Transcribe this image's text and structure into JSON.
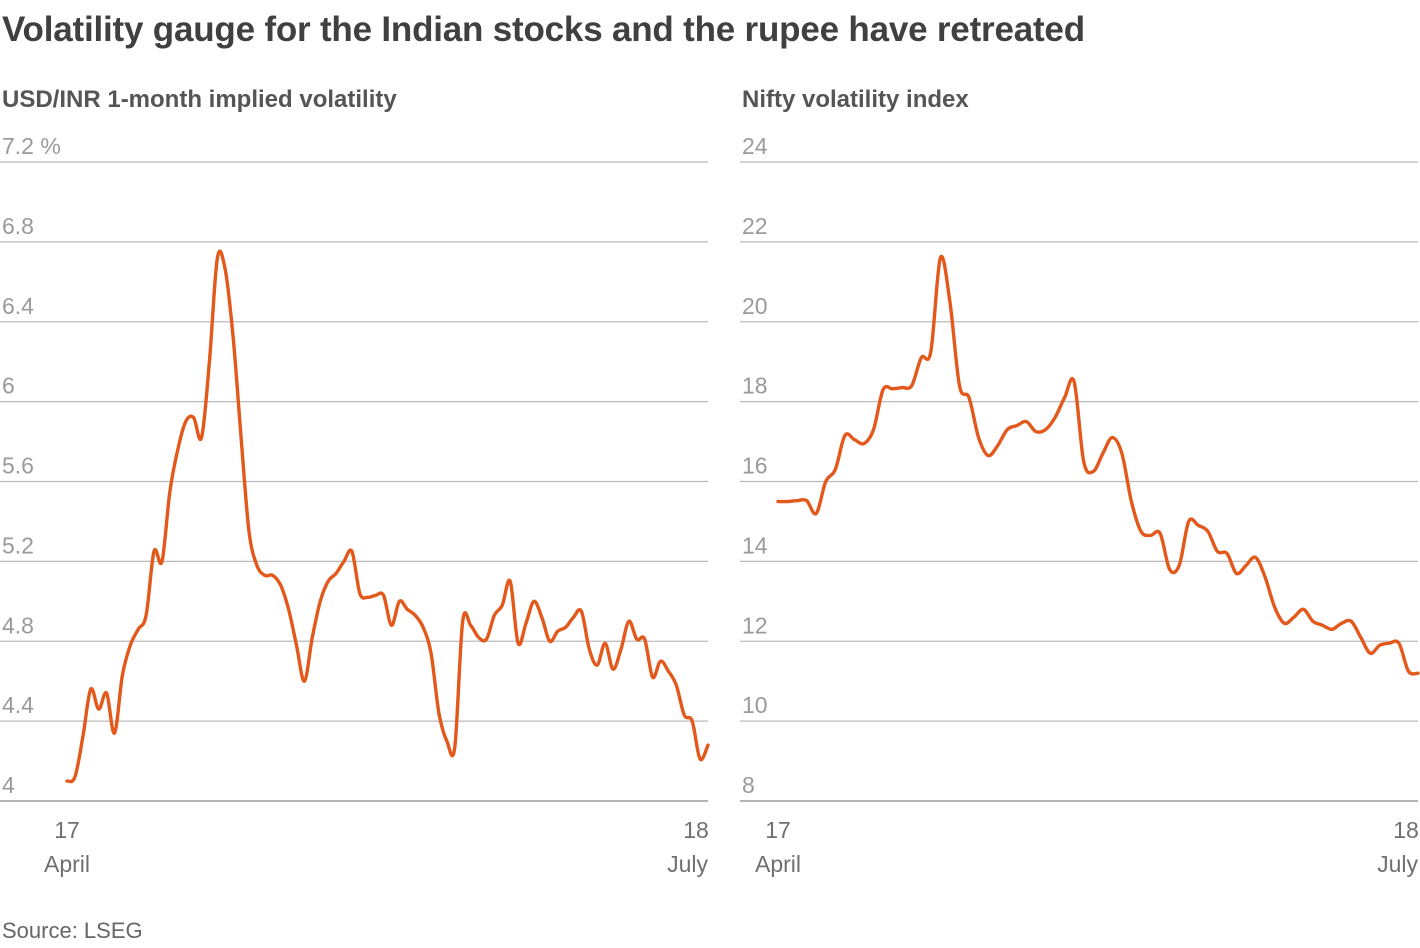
{
  "title": "Volatility gauge for the Indian stocks and the rupee have retreated",
  "source": "Source: LSEG",
  "colors": {
    "line": "#e3581b",
    "grid": "#bbbbbb",
    "text": "#404040"
  },
  "chart_data": [
    {
      "type": "line",
      "title": "USD/INR 1-month implied volatility",
      "ylim": [
        4,
        7.2
      ],
      "yticks": [
        4,
        4.4,
        4.8,
        5.2,
        5.6,
        6,
        6.4,
        6.8,
        7.2
      ],
      "ytick_labels": [
        "4",
        "4.4",
        "4.8",
        "5.2",
        "5.6",
        "6",
        "6.4",
        "6.8",
        "7.2 %"
      ],
      "x_labels": [
        {
          "day": "17",
          "month": "April"
        },
        {
          "day": "18",
          "month": "July"
        }
      ],
      "series": [
        {
          "name": "USD/INR 1-month implied volatility",
          "values": [
            4.1,
            4.12,
            4.32,
            4.56,
            4.46,
            4.54,
            4.34,
            4.63,
            4.78,
            4.86,
            4.93,
            5.25,
            5.2,
            5.55,
            5.76,
            5.9,
            5.92,
            5.82,
            6.2,
            6.72,
            6.66,
            6.32,
            5.82,
            5.35,
            5.18,
            5.13,
            5.13,
            5.08,
            4.96,
            4.78,
            4.6,
            4.82,
            5.0,
            5.1,
            5.14,
            5.2,
            5.25,
            5.04,
            5.02,
            5.03,
            5.03,
            4.88,
            5.0,
            4.96,
            4.93,
            4.87,
            4.74,
            4.44,
            4.3,
            4.27,
            4.9,
            4.88,
            4.82,
            4.81,
            4.93,
            4.98,
            5.1,
            4.79,
            4.89,
            5.0,
            4.92,
            4.8,
            4.85,
            4.87,
            4.92,
            4.95,
            4.76,
            4.68,
            4.79,
            4.66,
            4.76,
            4.9,
            4.81,
            4.81,
            4.62,
            4.7,
            4.65,
            4.58,
            4.43,
            4.4,
            4.21,
            4.28
          ]
        }
      ]
    },
    {
      "type": "line",
      "title": "Nifty volatility index",
      "ylim": [
        8,
        24
      ],
      "yticks": [
        8,
        10,
        12,
        14,
        16,
        18,
        20,
        22,
        24
      ],
      "ytick_labels": [
        "8",
        "10",
        "12",
        "14",
        "16",
        "18",
        "20",
        "22",
        "24"
      ],
      "x_labels": [
        {
          "day": "17",
          "month": "April"
        },
        {
          "day": "18",
          "month": "July"
        }
      ],
      "series": [
        {
          "name": "Nifty volatility index",
          "values": [
            15.5,
            15.5,
            15.52,
            15.52,
            15.2,
            16.0,
            16.3,
            17.15,
            17.05,
            16.95,
            17.3,
            18.3,
            18.32,
            18.35,
            18.4,
            19.1,
            19.25,
            21.6,
            20.5,
            18.4,
            18.1,
            17.1,
            16.65,
            16.9,
            17.3,
            17.4,
            17.5,
            17.25,
            17.3,
            17.6,
            18.1,
            18.5,
            16.5,
            16.25,
            16.7,
            17.1,
            16.7,
            15.5,
            14.75,
            14.65,
            14.7,
            13.8,
            13.9,
            15.0,
            14.9,
            14.75,
            14.25,
            14.2,
            13.7,
            13.9,
            14.1,
            13.6,
            12.85,
            12.45,
            12.6,
            12.8,
            12.5,
            12.4,
            12.3,
            12.45,
            12.5,
            12.1,
            11.7,
            11.9,
            11.95,
            11.95,
            11.25,
            11.2
          ]
        }
      ]
    }
  ]
}
